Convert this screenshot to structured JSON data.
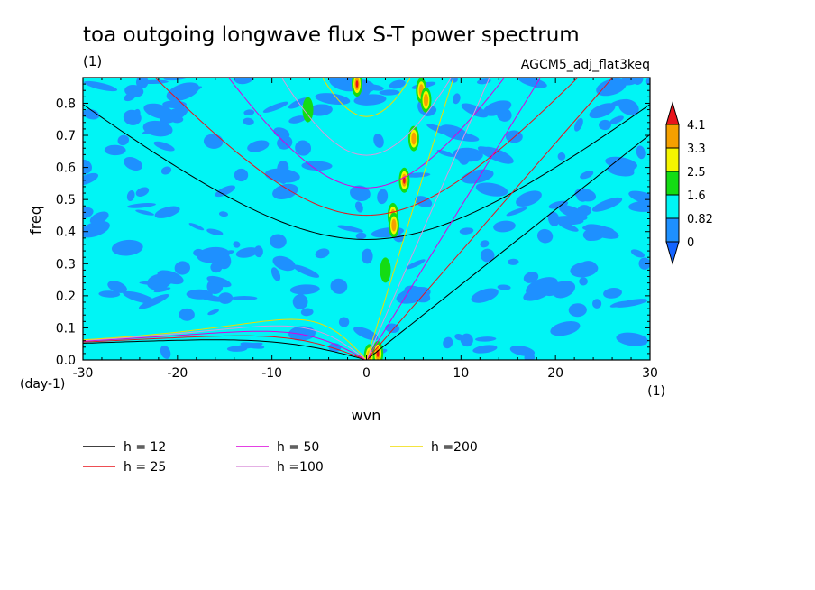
{
  "chart_data": {
    "type": "heatmap",
    "title": "toa outgoing longwave flux S-T power spectrum",
    "subtitle_left": "(1)",
    "subtitle_right": "AGCM5_adj_flat3keq",
    "xlabel": "wvn",
    "ylabel": "freq",
    "x_unit_label": "(1)",
    "y_unit_label": "(day-1)",
    "xlim": [
      -30,
      30
    ],
    "ylim": [
      0,
      0.88
    ],
    "x_ticks": [
      -30,
      -20,
      -10,
      0,
      10,
      20,
      30
    ],
    "x_tick_labels": [
      "-30",
      "-20",
      "-10",
      "0",
      "10",
      "20",
      "30"
    ],
    "y_ticks": [
      0,
      0.1,
      0.2,
      0.3,
      0.4,
      0.5,
      0.6,
      0.7,
      0.8
    ],
    "y_tick_labels": [
      "0.0",
      "0.1",
      "0.2",
      "0.3",
      "0.4",
      "0.5",
      "0.6",
      "0.7",
      "0.8"
    ],
    "colorbar": {
      "labels": [
        "4.1",
        "3.3",
        "2.5",
        "1.6",
        "0.82",
        "0"
      ],
      "colors": [
        "#e8141c",
        "#f5a000",
        "#f5f500",
        "#14dc14",
        "#00f5f5",
        "#1e90ff",
        "#1464ff"
      ]
    },
    "field_colors": {
      "background": "#00f5f5",
      "patches": "#1e90ff",
      "green": "#14dc14",
      "yellow": "#f5f500",
      "orange": "#f5a000",
      "red": "#e8141c"
    },
    "hotspots": [
      {
        "x": -1.0,
        "y": 0.86,
        "level": "red"
      },
      {
        "x": 5.8,
        "y": 0.84,
        "level": "orange"
      },
      {
        "x": 6.3,
        "y": 0.81,
        "level": "orange"
      },
      {
        "x": -6.2,
        "y": 0.78,
        "level": "green"
      },
      {
        "x": 5.0,
        "y": 0.69,
        "level": "orange"
      },
      {
        "x": 4.0,
        "y": 0.56,
        "level": "red"
      },
      {
        "x": 2.8,
        "y": 0.45,
        "level": "orange"
      },
      {
        "x": 2.9,
        "y": 0.42,
        "level": "orange"
      },
      {
        "x": 2.0,
        "y": 0.28,
        "level": "green"
      },
      {
        "x": 1.2,
        "y": 0.02,
        "level": "red"
      },
      {
        "x": 0.3,
        "y": 0.01,
        "level": "orange"
      }
    ],
    "series": [
      {
        "name": "h = 12",
        "h": 12,
        "color": "#000000"
      },
      {
        "name": "h = 25",
        "h": 25,
        "color": "#e8141c"
      },
      {
        "name": "h = 50",
        "h": 50,
        "color": "#dc00dc"
      },
      {
        "name": "h =100",
        "h": 100,
        "color": "#dc96dc"
      },
      {
        "name": "h =200",
        "h": 200,
        "color": "#f0dc00"
      }
    ]
  }
}
